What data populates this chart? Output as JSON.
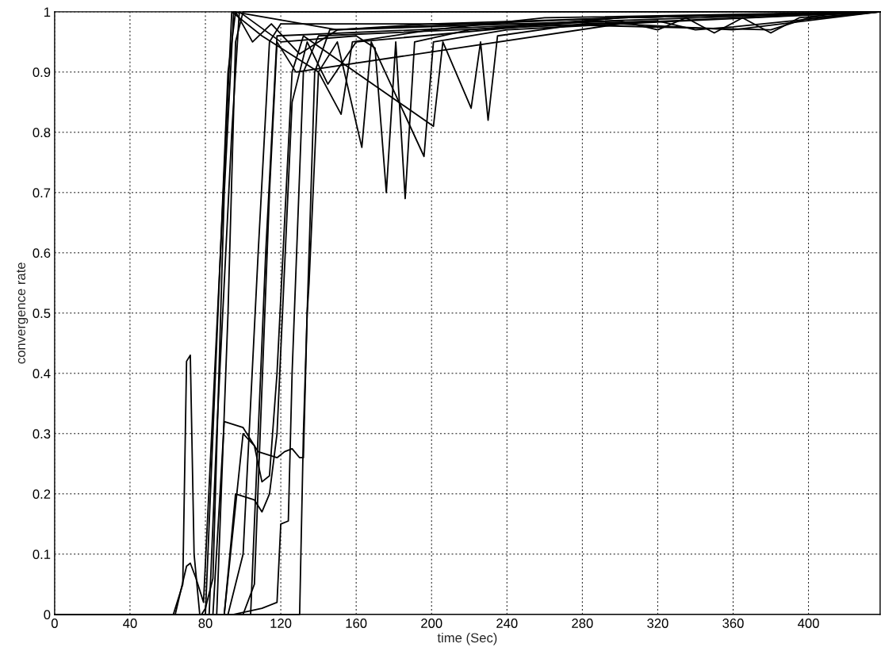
{
  "chart_data": {
    "type": "line",
    "xlabel": "time (Sec)",
    "ylabel": "convergence rate",
    "xlim": [
      0,
      438
    ],
    "ylim": [
      0,
      1
    ],
    "xticks": [
      0,
      40,
      80,
      120,
      160,
      200,
      240,
      280,
      320,
      360,
      400
    ],
    "yticks": [
      0,
      0.1,
      0.2,
      0.3,
      0.4,
      0.5,
      0.6,
      0.7,
      0.8,
      0.9,
      1
    ],
    "grid": true,
    "legend": false,
    "marker": "none",
    "line_style": "solid",
    "series": [
      {
        "color": "#000000",
        "x": [
          0,
          63,
          68,
          70,
          72,
          74,
          77,
          80,
          84,
          92,
          96,
          105,
          115,
          130,
          150,
          200,
          300,
          438
        ],
        "values": [
          0,
          0,
          0.05,
          0.42,
          0.43,
          0.1,
          0,
          0,
          0.3,
          0.9,
          1,
          0.95,
          0.98,
          0.93,
          0.97,
          0.98,
          0.99,
          1
        ]
      },
      {
        "color": "#000000",
        "x": [
          0,
          64,
          70,
          72,
          75,
          79,
          88,
          94,
          110,
          140,
          152,
          158,
          200,
          260,
          438
        ],
        "values": [
          0,
          0,
          0.08,
          0.085,
          0.06,
          0.02,
          0.6,
          1,
          0.96,
          0.9,
          0.83,
          0.95,
          0.97,
          0.99,
          1
        ]
      },
      {
        "color": "#000000",
        "x": [
          0,
          82,
          86,
          94,
          98,
          120,
          160,
          170,
          176,
          181,
          186,
          191,
          220,
          300,
          438
        ],
        "values": [
          0,
          0,
          0.3,
          0.8,
          1,
          0.95,
          0.96,
          0.94,
          0.7,
          0.95,
          0.69,
          0.95,
          0.97,
          0.99,
          1
        ]
      },
      {
        "color": "#000000",
        "x": [
          0,
          84,
          90,
          100,
          108,
          118,
          122,
          126,
          130,
          132,
          134,
          135,
          140,
          150,
          163,
          168,
          196,
          201,
          240,
          300,
          360,
          438
        ],
        "values": [
          0,
          0,
          0.32,
          0.31,
          0.27,
          0.26,
          0.27,
          0.275,
          0.26,
          0.26,
          0.5,
          0.55,
          0.9,
          0.95,
          0.775,
          0.95,
          0.76,
          0.95,
          0.97,
          0.98,
          0.97,
          1
        ]
      },
      {
        "color": "#000000",
        "x": [
          0,
          90,
          100,
          106,
          110,
          114,
          118,
          126,
          132,
          201,
          206,
          221,
          226,
          230,
          235,
          280,
          320,
          340,
          360,
          438
        ],
        "values": [
          0,
          0,
          0.3,
          0.28,
          0.22,
          0.23,
          0.4,
          0.9,
          0.96,
          0.81,
          0.95,
          0.84,
          0.95,
          0.82,
          0.96,
          0.98,
          0.985,
          0.97,
          0.975,
          1
        ]
      },
      {
        "color": "#000000",
        "x": [
          0,
          90,
          96,
          106,
          110,
          114,
          118,
          126,
          134,
          145,
          160,
          300,
          438
        ],
        "values": [
          0,
          0,
          0.2,
          0.19,
          0.17,
          0.2,
          0.3,
          0.85,
          0.95,
          0.88,
          0.95,
          0.99,
          1
        ]
      },
      {
        "color": "#000000",
        "x": [
          0,
          95,
          110,
          118,
          120,
          124,
          126,
          132,
          140,
          438
        ],
        "values": [
          0,
          0,
          0.01,
          0.02,
          0.15,
          0.155,
          0.4,
          0.9,
          0.96,
          1
        ]
      },
      {
        "color": "#000000",
        "x": [
          0,
          130,
          132,
          138,
          146,
          300,
          438
        ],
        "values": [
          0,
          0,
          0.3,
          0.9,
          0.97,
          0.99,
          1
        ]
      },
      {
        "color": "#000000",
        "x": [
          0,
          78,
          80,
          84,
          90,
          95,
          150,
          438
        ],
        "values": [
          0,
          0,
          0.01,
          0.06,
          0.7,
          1,
          0.97,
          1
        ]
      },
      {
        "color": "#000000",
        "x": [
          0,
          92,
          100,
          108,
          114,
          120,
          250,
          380,
          400,
          438
        ],
        "values": [
          0,
          0,
          0.1,
          0.6,
          0.95,
          0.98,
          0.98,
          0.97,
          0.99,
          1
        ]
      },
      {
        "color": "#000000",
        "x": [
          0,
          100,
          106,
          114,
          118,
          128,
          300,
          438
        ],
        "values": [
          0,
          0,
          0.05,
          0.7,
          0.95,
          0.9,
          0.98,
          1
        ]
      },
      {
        "color": "#000000",
        "x": [
          0,
          86,
          92,
          96,
          100,
          438
        ],
        "values": [
          0,
          0,
          0.5,
          0.95,
          1,
          1
        ]
      },
      {
        "color": "#000000",
        "x": [
          0,
          104,
          112,
          118,
          300,
          320,
          335,
          350,
          365,
          380,
          395,
          410,
          438
        ],
        "values": [
          0,
          0,
          0.6,
          0.96,
          0.985,
          0.97,
          0.99,
          0.965,
          0.99,
          0.965,
          0.99,
          0.995,
          1
        ]
      }
    ]
  }
}
